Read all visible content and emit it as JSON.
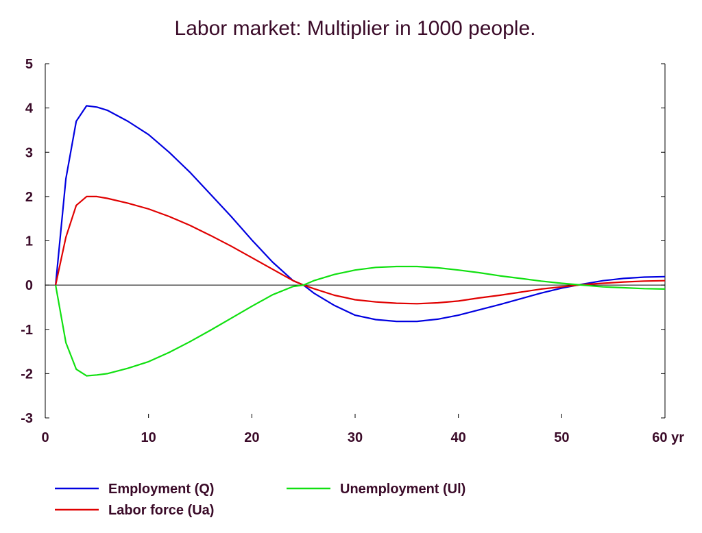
{
  "chart_data": {
    "type": "line",
    "title": "Labor market: Multiplier in 1000 people.",
    "xlabel": "",
    "ylabel": "",
    "x_unit_label": "yr",
    "xlim": [
      0,
      60
    ],
    "ylim": [
      -3,
      5
    ],
    "x_ticks": [
      0,
      10,
      20,
      30,
      40,
      50,
      60
    ],
    "y_ticks": [
      5,
      4,
      3,
      2,
      1,
      0,
      -1,
      -2,
      -3
    ],
    "grid": false,
    "zero_line": true,
    "legend_position": "bottom",
    "x": [
      1,
      2,
      3,
      4,
      5,
      6,
      8,
      10,
      12,
      14,
      16,
      18,
      20,
      22,
      24,
      25,
      26,
      28,
      30,
      32,
      34,
      36,
      38,
      40,
      42,
      44,
      46,
      48,
      50,
      52,
      54,
      56,
      58,
      60
    ],
    "series": [
      {
        "name": "Employment (Q)",
        "color": "#0000e0",
        "values": [
          0.0,
          2.4,
          3.7,
          4.05,
          4.02,
          3.95,
          3.7,
          3.4,
          3.0,
          2.55,
          2.05,
          1.55,
          1.02,
          0.52,
          0.1,
          0.0,
          -0.18,
          -0.46,
          -0.68,
          -0.78,
          -0.82,
          -0.82,
          -0.77,
          -0.68,
          -0.56,
          -0.44,
          -0.31,
          -0.18,
          -0.07,
          0.02,
          0.1,
          0.15,
          0.18,
          0.19
        ]
      },
      {
        "name": "Labor force (Ua)",
        "color": "#e00000",
        "values": [
          0.0,
          1.08,
          1.8,
          2.0,
          2.0,
          1.96,
          1.85,
          1.72,
          1.55,
          1.35,
          1.12,
          0.88,
          0.62,
          0.36,
          0.1,
          0.0,
          -0.08,
          -0.23,
          -0.33,
          -0.38,
          -0.41,
          -0.42,
          -0.4,
          -0.36,
          -0.29,
          -0.23,
          -0.16,
          -0.09,
          -0.04,
          0.01,
          0.04,
          0.07,
          0.09,
          0.1
        ]
      },
      {
        "name": "Unemployment (Ul)",
        "color": "#10e010",
        "values": [
          0.0,
          -1.3,
          -1.9,
          -2.05,
          -2.03,
          -2.0,
          -1.88,
          -1.73,
          -1.52,
          -1.28,
          -1.02,
          -0.75,
          -0.48,
          -0.22,
          -0.03,
          0.0,
          0.1,
          0.24,
          0.34,
          0.4,
          0.42,
          0.42,
          0.39,
          0.34,
          0.28,
          0.21,
          0.15,
          0.09,
          0.04,
          0.0,
          -0.04,
          -0.06,
          -0.08,
          -0.09
        ]
      }
    ]
  }
}
